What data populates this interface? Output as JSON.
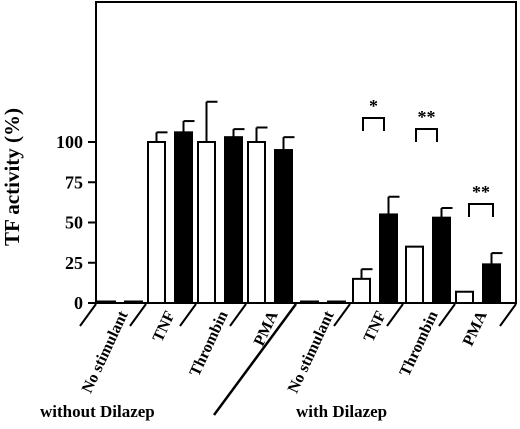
{
  "chart_data": {
    "type": "bar",
    "ylabel": "TF activity (%)",
    "ylim": [
      0,
      125
    ],
    "yticks": [
      0,
      25,
      50,
      75,
      100
    ],
    "groups": [
      {
        "name": "without Dilazep",
        "categories": [
          "No stimulant",
          "TNF",
          "Thrombin",
          "PMA"
        ]
      },
      {
        "name": "with Dilazep",
        "categories": [
          "No stimulant",
          "TNF",
          "Thrombin",
          "PMA"
        ]
      }
    ],
    "bars": [
      {
        "group": "without Dilazep",
        "category": "No stimulant",
        "fill": "open",
        "value": 0,
        "error": 0
      },
      {
        "group": "without Dilazep",
        "category": "No stimulant",
        "fill": "solid",
        "value": 0,
        "error": 0
      },
      {
        "group": "without Dilazep",
        "category": "TNF",
        "fill": "open",
        "value": 100,
        "error": 6
      },
      {
        "group": "without Dilazep",
        "category": "TNF",
        "fill": "solid",
        "value": 106,
        "error": 7
      },
      {
        "group": "without Dilazep",
        "category": "Thrombin",
        "fill": "open",
        "value": 100,
        "error": 25
      },
      {
        "group": "without Dilazep",
        "category": "Thrombin",
        "fill": "solid",
        "value": 103,
        "error": 5
      },
      {
        "group": "without Dilazep",
        "category": "PMA",
        "fill": "open",
        "value": 100,
        "error": 9
      },
      {
        "group": "without Dilazep",
        "category": "PMA",
        "fill": "solid",
        "value": 95,
        "error": 8
      },
      {
        "group": "with Dilazep",
        "category": "No stimulant",
        "fill": "open",
        "value": 0,
        "error": 0
      },
      {
        "group": "with Dilazep",
        "category": "No stimulant",
        "fill": "solid",
        "value": 0,
        "error": 0
      },
      {
        "group": "with Dilazep",
        "category": "TNF",
        "fill": "open",
        "value": 15,
        "error": 6
      },
      {
        "group": "with Dilazep",
        "category": "TNF",
        "fill": "solid",
        "value": 55,
        "error": 11
      },
      {
        "group": "with Dilazep",
        "category": "Thrombin",
        "fill": "open",
        "value": 35,
        "error": 0
      },
      {
        "group": "with Dilazep",
        "category": "Thrombin",
        "fill": "solid",
        "value": 53,
        "error": 6
      },
      {
        "group": "with Dilazep",
        "category": "PMA",
        "fill": "open",
        "value": 7,
        "error": 0
      },
      {
        "group": "with Dilazep",
        "category": "PMA",
        "fill": "solid",
        "value": 24,
        "error": 7
      }
    ],
    "significance": [
      {
        "category": "TNF",
        "group": "with Dilazep",
        "label": "*"
      },
      {
        "category": "Thrombin",
        "group": "with Dilazep",
        "label": "**"
      },
      {
        "category": "PMA",
        "group": "with Dilazep",
        "label": "**"
      }
    ]
  }
}
